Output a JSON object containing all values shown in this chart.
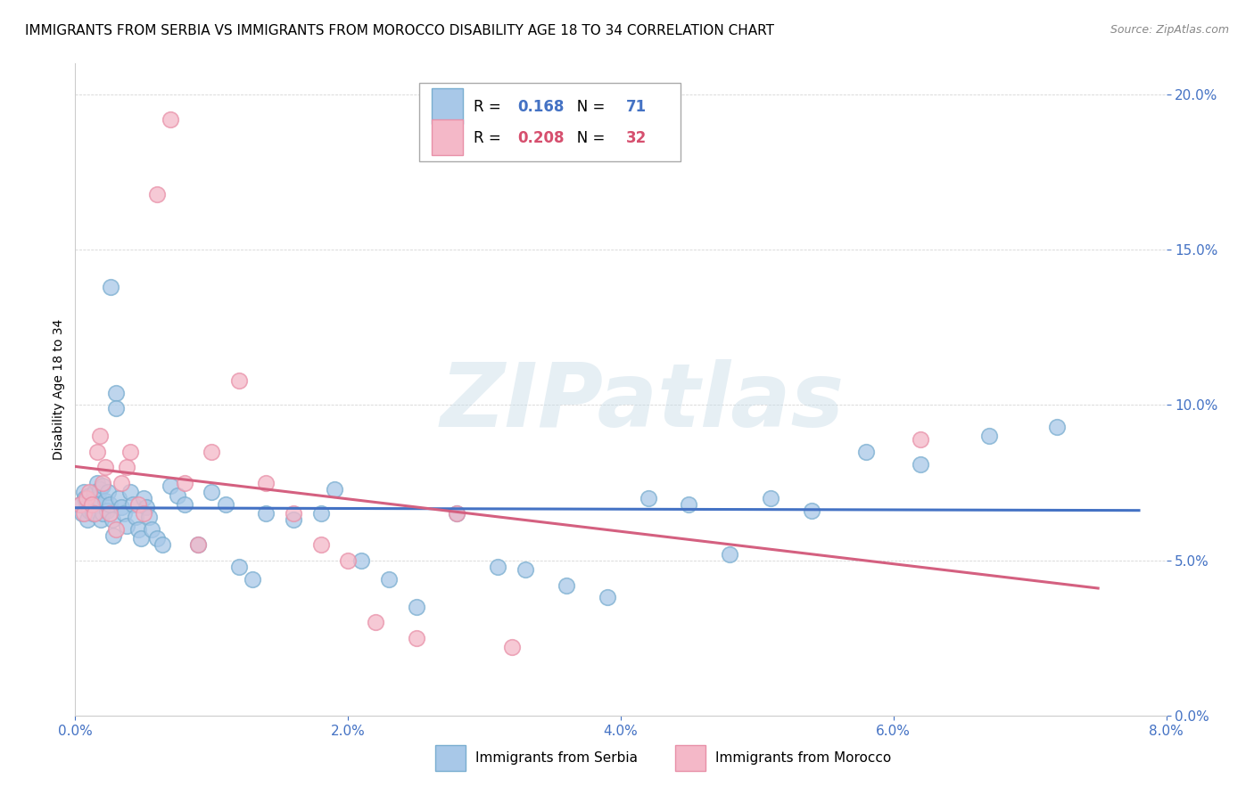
{
  "title": "IMMIGRANTS FROM SERBIA VS IMMIGRANTS FROM MOROCCO DISABILITY AGE 18 TO 34 CORRELATION CHART",
  "source": "Source: ZipAtlas.com",
  "ylabel": "Disability Age 18 to 34",
  "xlim": [
    0.0,
    0.08
  ],
  "ylim": [
    0.0,
    0.21
  ],
  "xticks": [
    0.0,
    0.02,
    0.04,
    0.06,
    0.08
  ],
  "yticks": [
    0.0,
    0.05,
    0.1,
    0.15,
    0.2
  ],
  "serbia_color": "#a8c8e8",
  "morocco_color": "#f4b8c8",
  "serbia_edge": "#7aaed0",
  "morocco_edge": "#e890a8",
  "serbia_line_color": "#4472c4",
  "morocco_line_color": "#d46080",
  "serbia_R": 0.168,
  "serbia_N": 71,
  "morocco_R": 0.208,
  "morocco_N": 32,
  "serbia_x": [
    0.0004,
    0.0005,
    0.0006,
    0.0007,
    0.0008,
    0.0009,
    0.001,
    0.001,
    0.0012,
    0.0013,
    0.0014,
    0.0015,
    0.0016,
    0.0017,
    0.0018,
    0.0019,
    0.002,
    0.002,
    0.0022,
    0.0023,
    0.0024,
    0.0025,
    0.0026,
    0.0027,
    0.0028,
    0.003,
    0.003,
    0.0032,
    0.0034,
    0.0036,
    0.0038,
    0.004,
    0.0042,
    0.0044,
    0.0046,
    0.0048,
    0.005,
    0.0052,
    0.0054,
    0.0056,
    0.006,
    0.0064,
    0.007,
    0.0075,
    0.008,
    0.009,
    0.01,
    0.011,
    0.012,
    0.013,
    0.014,
    0.016,
    0.018,
    0.019,
    0.021,
    0.023,
    0.025,
    0.028,
    0.031,
    0.033,
    0.036,
    0.039,
    0.042,
    0.045,
    0.048,
    0.051,
    0.054,
    0.058,
    0.062,
    0.067,
    0.072
  ],
  "serbia_y": [
    0.068,
    0.065,
    0.072,
    0.07,
    0.067,
    0.063,
    0.071,
    0.066,
    0.069,
    0.065,
    0.072,
    0.068,
    0.075,
    0.07,
    0.073,
    0.063,
    0.074,
    0.065,
    0.069,
    0.066,
    0.072,
    0.068,
    0.138,
    0.063,
    0.058,
    0.104,
    0.099,
    0.07,
    0.067,
    0.065,
    0.061,
    0.072,
    0.068,
    0.064,
    0.06,
    0.057,
    0.07,
    0.067,
    0.064,
    0.06,
    0.057,
    0.055,
    0.074,
    0.071,
    0.068,
    0.055,
    0.072,
    0.068,
    0.048,
    0.044,
    0.065,
    0.063,
    0.065,
    0.073,
    0.05,
    0.044,
    0.035,
    0.065,
    0.048,
    0.047,
    0.042,
    0.038,
    0.07,
    0.068,
    0.052,
    0.07,
    0.066,
    0.085,
    0.081,
    0.09,
    0.093
  ],
  "morocco_x": [
    0.0004,
    0.0006,
    0.0008,
    0.001,
    0.0012,
    0.0014,
    0.0016,
    0.0018,
    0.002,
    0.0022,
    0.0025,
    0.003,
    0.0034,
    0.0038,
    0.004,
    0.0046,
    0.005,
    0.006,
    0.007,
    0.008,
    0.009,
    0.01,
    0.012,
    0.014,
    0.016,
    0.018,
    0.02,
    0.022,
    0.025,
    0.028,
    0.032,
    0.062
  ],
  "morocco_y": [
    0.068,
    0.065,
    0.07,
    0.072,
    0.068,
    0.065,
    0.085,
    0.09,
    0.075,
    0.08,
    0.065,
    0.06,
    0.075,
    0.08,
    0.085,
    0.068,
    0.065,
    0.168,
    0.192,
    0.075,
    0.055,
    0.085,
    0.108,
    0.075,
    0.065,
    0.055,
    0.05,
    0.03,
    0.025,
    0.065,
    0.022,
    0.089
  ],
  "legend_serbia_label": "Immigrants from Serbia",
  "legend_morocco_label": "Immigrants from Morocco",
  "watermark": "ZIPatlas",
  "title_fontsize": 11,
  "axis_label_fontsize": 10,
  "tick_fontsize": 11,
  "tick_color": "#4472c4"
}
